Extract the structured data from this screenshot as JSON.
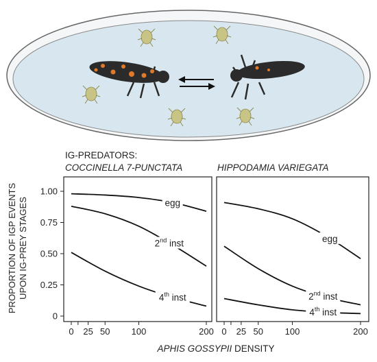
{
  "header": {
    "line1": "IG-PREDATORS:",
    "left_species": "COCCINELLA 7-PUNCTATA",
    "right_species": "HIPPODAMIA VARIEGATA"
  },
  "y_label": {
    "line1": "PROPORTION OF IGP EVENTS",
    "line2": "UPON IG-PREY STAGES"
  },
  "x_label": {
    "italic_part": "APHIS GOSSYPII",
    "rest": " DENSITY"
  },
  "palette": {
    "dish_fill": "#d8e7ef",
    "dish_rim": "#666666",
    "curve": "#111111",
    "aphid": "#c8c485",
    "larva": "#2b2b2b",
    "larva_spots": "#e07a2a"
  },
  "chart_data": [
    {
      "type": "line",
      "title": "COCCINELLA 7-PUNCTATA",
      "xlabel": "APHIS GOSSYPII DENSITY",
      "ylabel": "PROPORTION OF IGP EVENTS UPON IG-PREY STAGES",
      "xlim": [
        0,
        200
      ],
      "ylim": [
        0,
        1
      ],
      "x_ticks": [
        "0",
        "25",
        "50",
        "100",
        "200"
      ],
      "x_tick_values": [
        0,
        25,
        50,
        100,
        200
      ],
      "y_ticks": [
        "0",
        "0.25",
        "0.50",
        "0.75",
        "1.00"
      ],
      "y_tick_values": [
        0,
        0.25,
        0.5,
        0.75,
        1
      ],
      "grid": false,
      "series": [
        {
          "name": "egg",
          "sup": "",
          "suffix": "",
          "x": [
            0,
            50,
            100,
            150,
            200
          ],
          "y": [
            0.98,
            0.97,
            0.95,
            0.91,
            0.84
          ],
          "label_at": 150
        },
        {
          "name": "2nd inst",
          "base": "2",
          "sup": "nd",
          "suffix": " inst",
          "x": [
            0,
            50,
            100,
            150,
            200
          ],
          "y": [
            0.88,
            0.82,
            0.72,
            0.57,
            0.4
          ],
          "label_at": 145
        },
        {
          "name": "4th inst",
          "base": "4",
          "sup": "th",
          "suffix": " inst",
          "x": [
            0,
            50,
            100,
            150,
            200
          ],
          "y": [
            0.51,
            0.36,
            0.24,
            0.15,
            0.08
          ],
          "label_at": 150
        }
      ]
    },
    {
      "type": "line",
      "title": "HIPPODAMIA VARIEGATA",
      "xlabel": "APHIS GOSSYPII DENSITY",
      "xlim": [
        0,
        200
      ],
      "ylim": [
        0,
        1
      ],
      "x_ticks": [
        "0",
        "25",
        "50",
        "100",
        "200"
      ],
      "x_tick_values": [
        0,
        25,
        50,
        100,
        200
      ],
      "grid": false,
      "series": [
        {
          "name": "egg",
          "sup": "",
          "suffix": "",
          "x": [
            0,
            50,
            100,
            150,
            200
          ],
          "y": [
            0.91,
            0.86,
            0.78,
            0.64,
            0.46
          ],
          "label_at": 155
        },
        {
          "name": "2nd inst",
          "base": "2",
          "sup": "nd",
          "suffix": " inst",
          "x": [
            0,
            50,
            100,
            150,
            200
          ],
          "y": [
            0.56,
            0.38,
            0.24,
            0.15,
            0.09
          ],
          "label_at": 145
        },
        {
          "name": "4th inst",
          "base": "4",
          "sup": "th",
          "suffix": " inst",
          "x": [
            0,
            50,
            100,
            150,
            200
          ],
          "y": [
            0.14,
            0.09,
            0.05,
            0.03,
            0.02
          ],
          "label_at": 145
        }
      ]
    }
  ]
}
